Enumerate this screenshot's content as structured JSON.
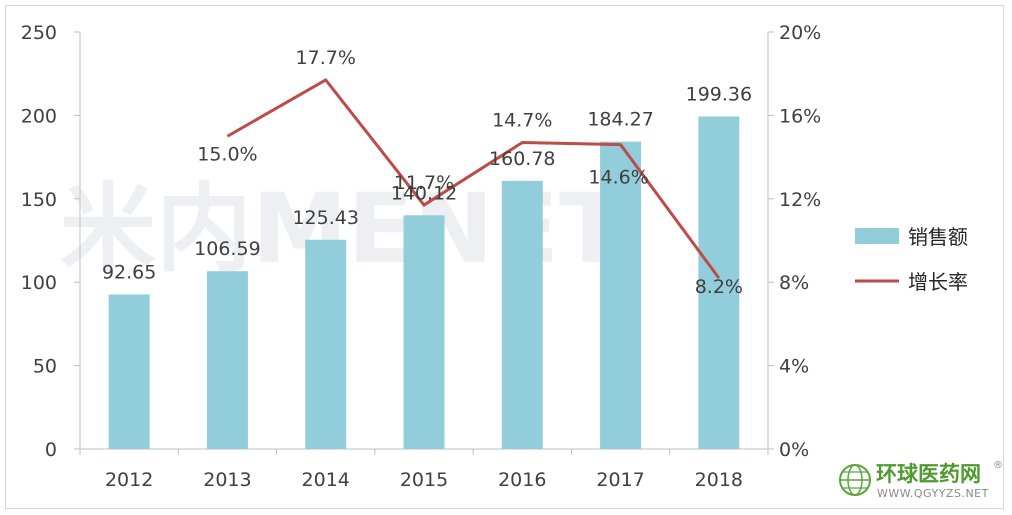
{
  "chart_data": {
    "type": "bar",
    "categories": [
      "2012",
      "2013",
      "2014",
      "2015",
      "2016",
      "2017",
      "2018"
    ],
    "series": [
      {
        "name": "销售额",
        "type": "bar",
        "axis": "left",
        "values": [
          92.65,
          106.59,
          125.43,
          140.12,
          160.78,
          184.27,
          199.36
        ],
        "labels": [
          "92.65",
          "106.59",
          "125.43",
          "140.12",
          "160.78",
          "184.27",
          "199.36"
        ],
        "color": "#92cddc"
      },
      {
        "name": "增长率",
        "type": "line",
        "axis": "right",
        "values": [
          null,
          15.0,
          17.7,
          11.7,
          14.7,
          14.6,
          8.2
        ],
        "labels": [
          null,
          "15.0%",
          "17.7%",
          "11.7%",
          "14.7%",
          "14.6%",
          "8.2%"
        ],
        "color": "#be4b48"
      }
    ],
    "y_left": {
      "ylim": [
        0,
        250
      ],
      "ticks": [
        "0",
        "50",
        "100",
        "150",
        "200",
        "250"
      ]
    },
    "y_right": {
      "ylim": [
        0,
        20
      ],
      "ticks": [
        "0%",
        "4%",
        "8%",
        "12%",
        "16%",
        "20%"
      ]
    },
    "legend_position": "right",
    "grid": false,
    "title": "",
    "xlabel": "",
    "ylabel": ""
  },
  "watermark": {
    "text": "米内MENET"
  },
  "logo": {
    "name": "环球医药网",
    "url": "WWW.QGYYZS.NET",
    "mark": "®"
  },
  "colors": {
    "bar": "#92cddc",
    "line": "#be4b48",
    "axis": "#bfbfbf"
  }
}
